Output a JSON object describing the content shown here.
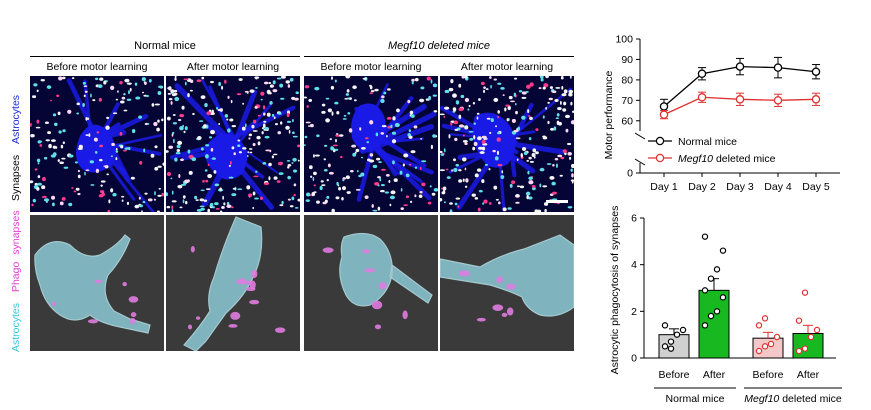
{
  "figure": {
    "group_headers": [
      "Normal mice",
      "Megf10 deleted mice"
    ],
    "column_headers": [
      "Before motor learning",
      "After motor learning",
      "Before motor learning",
      "After motor learning"
    ],
    "row_labels": {
      "top": [
        {
          "text": "Synapses",
          "color": "#000000"
        },
        {
          "text": "Astrocytes",
          "color": "#1a2fd6"
        }
      ],
      "bottom": [
        {
          "text": "Astrocytes",
          "color": "#39c6d6"
        },
        {
          "text": "Phago",
          "color": "#e040d0"
        },
        {
          "text": "synapses",
          "color": "#e040d0"
        }
      ]
    },
    "colors": {
      "micro_bg": "#050535",
      "astro_blue": "#1a1ae6",
      "render_bg": "#3a3a3a",
      "astro_cyan": "#8cc9d4",
      "phago_pink": "#e07be0",
      "normal_line": "#000000",
      "megf10_line": "#e03030",
      "bar_before_normal": "#d0d0d0",
      "bar_after_normal": "#18b820",
      "bar_before_megf10": "#f4c8c8",
      "bar_after_megf10": "#18b820"
    }
  },
  "chart_data": [
    {
      "type": "line",
      "title": "",
      "xlabel": "",
      "ylabel": "Motor performance",
      "categories": [
        "Day 1",
        "Day 2",
        "Day 3",
        "Day 4",
        "Day 5"
      ],
      "y_ticks": [
        "0",
        "60",
        "70",
        "80",
        "90",
        "100"
      ],
      "ylim": [
        0,
        100
      ],
      "axis_break": [
        5,
        55
      ],
      "legend_position": "bottom-left inside plot",
      "series": [
        {
          "name": "Normal mice",
          "name_prefix": "",
          "name_italic": "",
          "name_rest": "Normal mice",
          "color": "#000000",
          "marker": "open-circle",
          "values": [
            67,
            83,
            86.5,
            86,
            84
          ],
          "error": [
            3.5,
            3,
            4,
            5,
            3.5
          ]
        },
        {
          "name": "Megf10 deleted mice",
          "name_prefix": "",
          "name_italic": "Megf10",
          "name_rest": " deleted mice",
          "color": "#e03030",
          "marker": "open-circle",
          "values": [
            63,
            71.5,
            70.5,
            70,
            70.5
          ],
          "error": [
            2,
            2.5,
            3,
            3,
            3
          ]
        }
      ]
    },
    {
      "type": "bar",
      "title": "",
      "xlabel": "",
      "ylabel": "Astrocytic phagocytosis of synapses",
      "categories": [
        "Before",
        "After",
        "Before",
        "After"
      ],
      "groups": [
        {
          "italic": "",
          "rest": "Normal mice"
        },
        {
          "italic": "Megf10",
          "rest": " deleted mice"
        }
      ],
      "y_ticks": [
        "0",
        "2",
        "4",
        "6"
      ],
      "ylim": [
        0,
        6
      ],
      "values": [
        1.0,
        2.9,
        0.85,
        1.05
      ],
      "error": [
        0.25,
        0.5,
        0.25,
        0.35
      ],
      "points": [
        [
          0.5,
          0.7,
          1.0,
          1.2,
          1.4,
          0.4
        ],
        [
          1.4,
          1.8,
          2.0,
          2.6,
          2.9,
          3.4,
          3.8,
          4.6,
          5.2
        ],
        [
          0.3,
          0.5,
          0.6,
          0.9,
          1.4,
          1.7
        ],
        [
          0.3,
          0.4,
          0.9,
          1.2,
          1.6,
          2.8
        ]
      ]
    }
  ]
}
